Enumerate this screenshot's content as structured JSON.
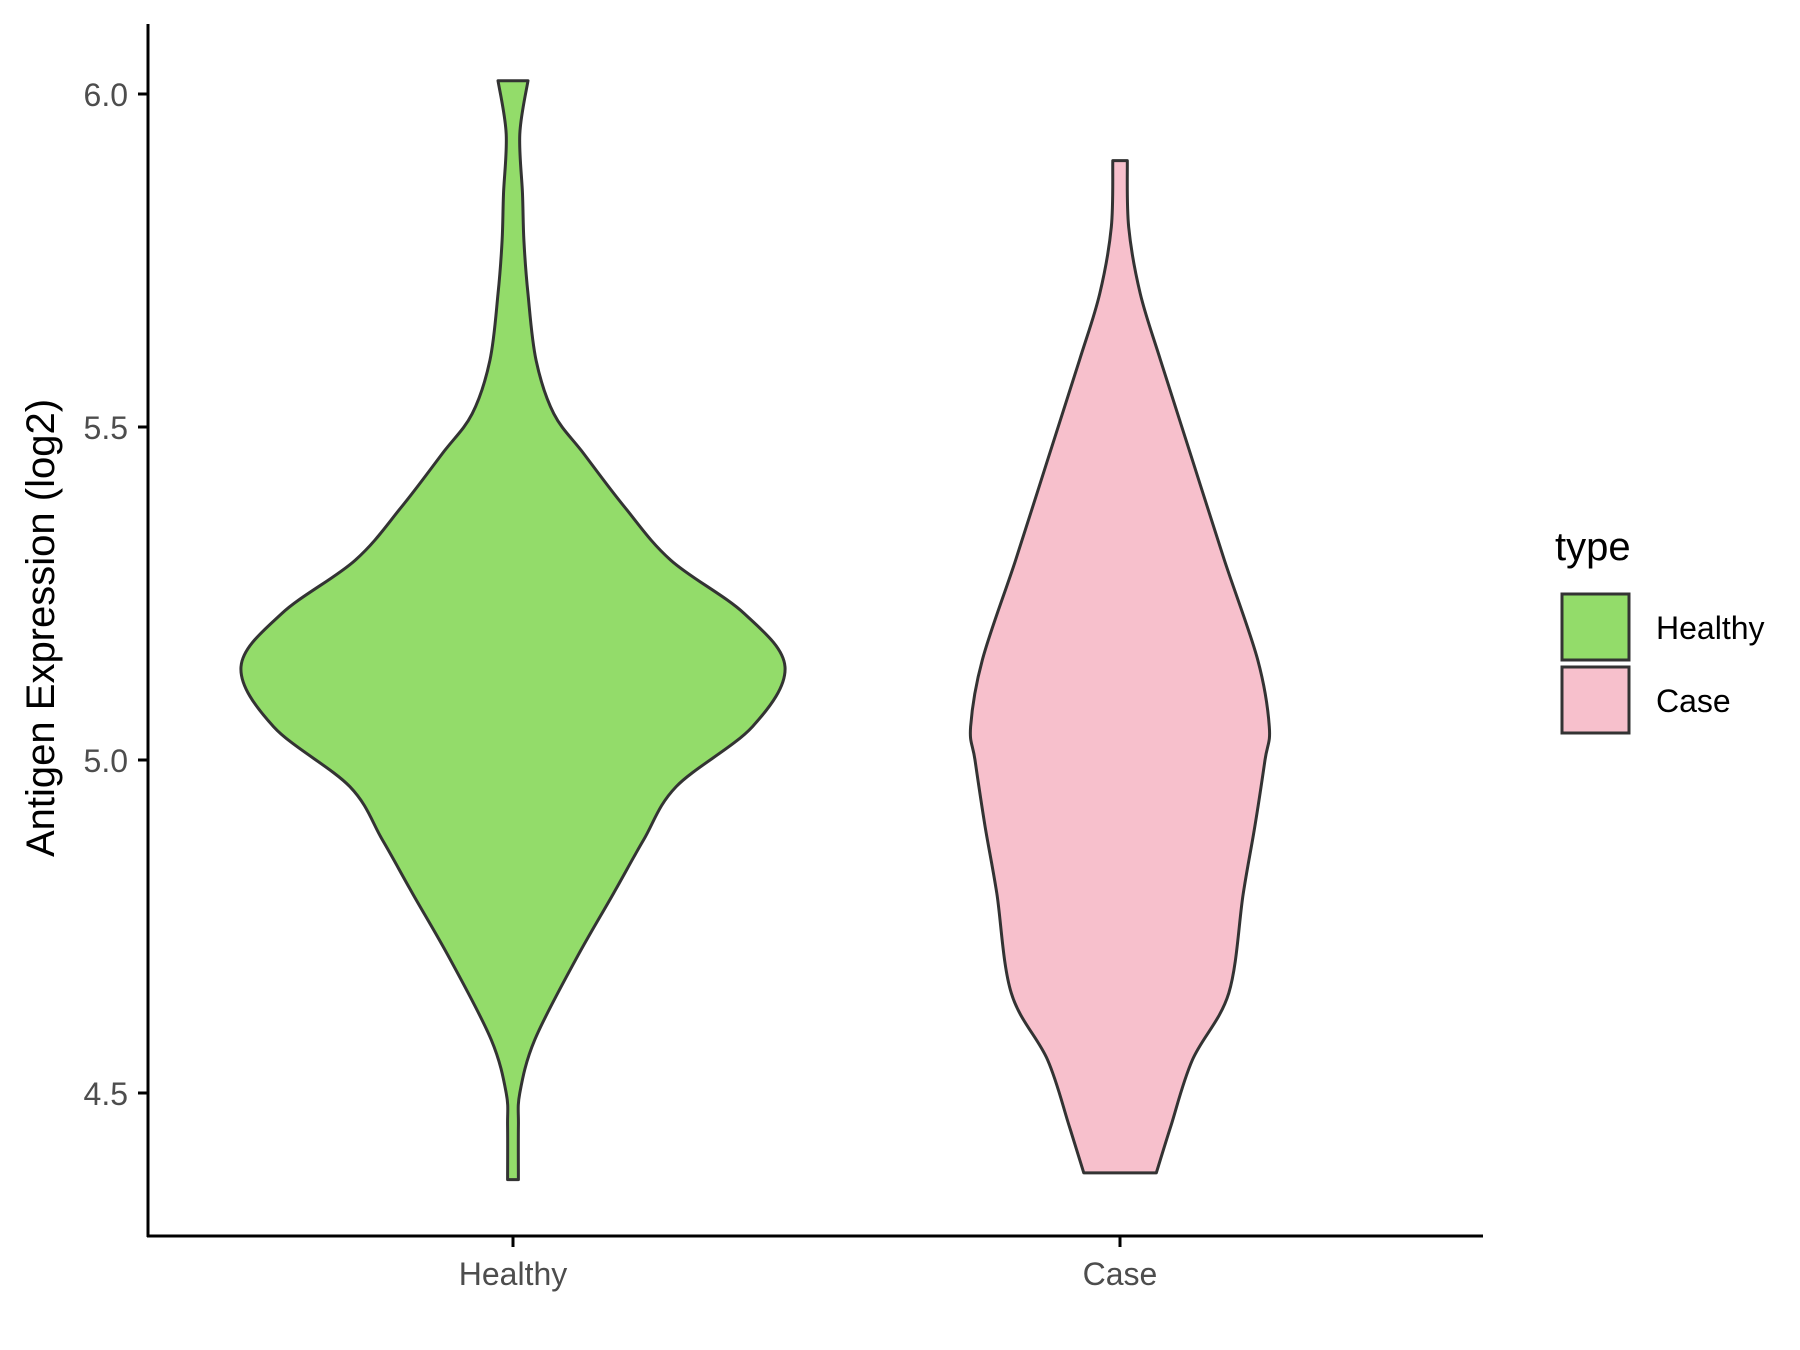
{
  "chart_data": {
    "type": "violin",
    "xlabel": "",
    "ylabel": "Antigen Expression (log2)",
    "ylim": [
      4.28,
      6.1
    ],
    "yticks": [
      4.5,
      5.0,
      5.5,
      6.0
    ],
    "ytick_labels": [
      "4.5",
      "5.0",
      "5.5",
      "6.0"
    ],
    "categories": [
      "Healthy",
      "Case"
    ],
    "grid": false,
    "legend": {
      "title": "type",
      "position": "right",
      "entries": [
        {
          "label": "Healthy",
          "color": "#93dc6a"
        },
        {
          "label": "Case",
          "color": "#f7c0cc"
        }
      ]
    },
    "series": [
      {
        "name": "Healthy",
        "color": "#93dc6a",
        "range": [
          4.37,
          6.02
        ],
        "density": [
          [
            4.37,
            0.02
          ],
          [
            4.45,
            0.02
          ],
          [
            4.5,
            0.025
          ],
          [
            4.58,
            0.08
          ],
          [
            4.7,
            0.23
          ],
          [
            4.8,
            0.37
          ],
          [
            4.88,
            0.48
          ],
          [
            4.96,
            0.6
          ],
          [
            5.05,
            0.88
          ],
          [
            5.14,
            1.0
          ],
          [
            5.22,
            0.85
          ],
          [
            5.3,
            0.58
          ],
          [
            5.38,
            0.41
          ],
          [
            5.46,
            0.26
          ],
          [
            5.52,
            0.15
          ],
          [
            5.6,
            0.085
          ],
          [
            5.7,
            0.055
          ],
          [
            5.78,
            0.04
          ],
          [
            5.85,
            0.035
          ],
          [
            5.94,
            0.025
          ],
          [
            6.02,
            0.055
          ]
        ]
      },
      {
        "name": "Case",
        "color": "#f7c0cc",
        "range": [
          4.38,
          5.9
        ],
        "density": [
          [
            4.38,
            0.25
          ],
          [
            4.45,
            0.35
          ],
          [
            4.55,
            0.5
          ],
          [
            4.65,
            0.75
          ],
          [
            4.8,
            0.85
          ],
          [
            4.9,
            0.93
          ],
          [
            5.0,
            1.0
          ],
          [
            5.05,
            1.03
          ],
          [
            5.15,
            0.95
          ],
          [
            5.3,
            0.72
          ],
          [
            5.45,
            0.5
          ],
          [
            5.6,
            0.28
          ],
          [
            5.7,
            0.14
          ],
          [
            5.8,
            0.06
          ],
          [
            5.9,
            0.05
          ]
        ]
      }
    ]
  }
}
